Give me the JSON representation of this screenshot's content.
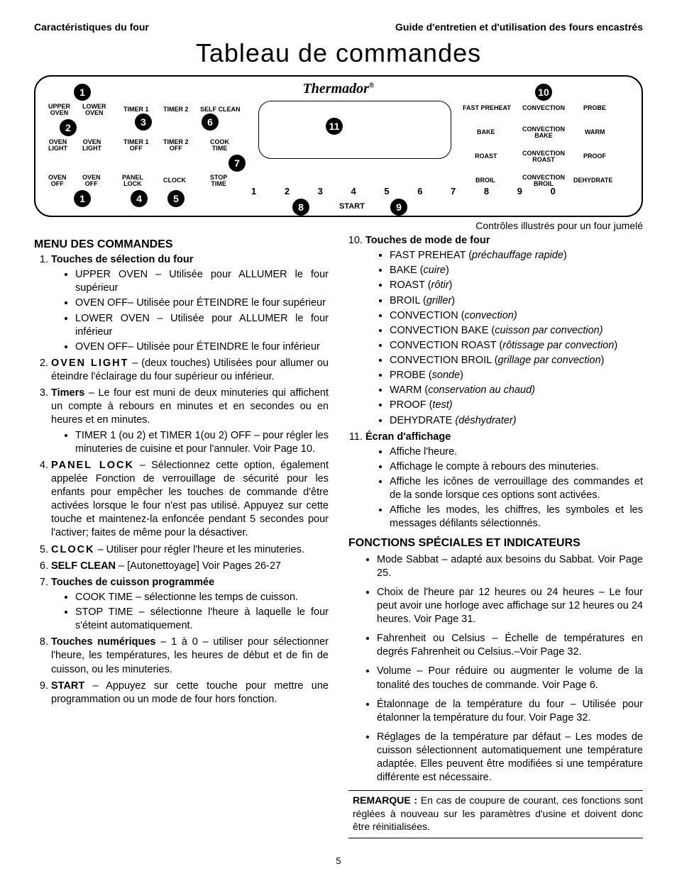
{
  "header": {
    "left": "Caractéristiques du four",
    "right": "Guide d'entretien et d'utilisation des fours encastrés"
  },
  "main_title": "Tableau de commandes",
  "brand": "Thermador",
  "panel": {
    "labels": {
      "upper_oven": "UPPER\nOVEN",
      "lower_oven": "LOWER\nOVEN",
      "timer1": "TIMER 1",
      "timer2": "TIMER 2",
      "self_clean": "SELF CLEAN",
      "oven_light_l": "OVEN\nLIGHT",
      "oven_light_r": "OVEN\nLIGHT",
      "timer1_off": "TIMER 1\nOFF",
      "timer2_off": "TIMER 2\nOFF",
      "cook_time": "COOK\nTIME",
      "oven_off_l": "OVEN\nOFF",
      "oven_off_r": "OVEN\nOFF",
      "panel_lock": "PANEL\nLOCK",
      "clock": "CLOCK",
      "stop_time": "STOP\nTIME",
      "fast_preheat": "FAST PREHEAT",
      "convection": "CONVECTION",
      "probe": "PROBE",
      "bake": "BAKE",
      "conv_bake": "CONVECTION\nBAKE",
      "warm": "WARM",
      "roast": "ROAST",
      "conv_roast": "CONVECTION\nROAST",
      "proof": "PROOF",
      "broil": "BROIL",
      "conv_broil": "CONVECTION\nBROIL",
      "dehydrate": "DEHYDRATE"
    },
    "keypad": "1  2  3  4  5  6  7  8  9  0",
    "start": "START",
    "callouts": {
      "c1a": "1",
      "c1b": "1",
      "c2": "2",
      "c3": "3",
      "c4": "4",
      "c5": "5",
      "c6": "6",
      "c7": "7",
      "c8": "8",
      "c9": "9",
      "c10": "10",
      "c11": "11"
    }
  },
  "caption": "Contrôles illustrés pour un four jumelé",
  "left_col": {
    "title": "MENU DES COMMANDES",
    "item1": {
      "head": "Touches de sélection du four",
      "subs": [
        "UPPER OVEN – Utilisée pour ALLUMER le four supérieur",
        "OVEN OFF– Utilisée pour ÉTEINDRE le four supérieur",
        "LOWER OVEN – Utilisée pour ALLUMER le four inférieur",
        "OVEN OFF– Utilisée pour ÉTEINDRE le four inférieur"
      ]
    },
    "item2": {
      "head": "OVEN LIGHT",
      "body": " – (deux touches) Utilisées pour allumer ou éteindre l'éclairage du four supérieur ou inférieur."
    },
    "item3": {
      "head": "Timers",
      "body": " – Le four est muni de deux minuteries qui affichent un compte à rebours en minutes et en secondes ou en heures et en minutes.",
      "subs": [
        "TIMER 1 (ou 2) et TIMER 1(ou 2) OFF – pour régler les minuteries de cuisine et pour l'annuler. Voir Page 10."
      ]
    },
    "item4": {
      "head": "PANEL LOCK",
      "body": " – Sélectionnez cette option, également appelée Fonction de verrouillage de sécurité pour les enfants pour empêcher les touches de commande d'être activées lorsque le four n'est pas utilisé. Appuyez sur cette touche et maintenez-la enfoncée pendant 5 secondes pour l'activer; faites de même pour la désactiver."
    },
    "item5": {
      "head": "CLOCK",
      "body": " – Utiliser pour régler l'heure et les minuteries."
    },
    "item6": {
      "head": "SELF CLEAN",
      "body": " – [Autonettoyage] Voir Pages 26-27"
    },
    "item7": {
      "head": "Touches de cuisson programmée",
      "subs": [
        "COOK TIME – sélectionne les temps de cuisson.",
        "STOP TIME – sélectionne l'heure à laquelle le four s'éteint automatiquement."
      ]
    },
    "item8": {
      "head": "Touches numériques",
      "body": " – 1 à 0 – utiliser pour sélectionner l'heure, les températures, les heures de début et de fin de cuisson, ou les minuteries."
    },
    "item9": {
      "head": "START",
      "body": " – Appuyez sur cette touche pour mettre une programmation ou un mode de four hors fonction."
    }
  },
  "right_col": {
    "item10": {
      "head": "Touches de mode de four",
      "modes": [
        {
          "t": "FAST PREHEAT (",
          "i": "préchauffage rapide",
          "e": ")"
        },
        {
          "t": "BAKE (",
          "i": "cuire",
          "e": ")"
        },
        {
          "t": "ROAST (",
          "i": "rôtir",
          "e": ")"
        },
        {
          "t": "BROIL (",
          "i": "griller",
          "e": ")"
        },
        {
          "t": "CONVECTION (",
          "i": "convection)",
          "e": ""
        },
        {
          "t": "CONVECTION BAKE (",
          "i": "cuisson par convection)",
          "e": ""
        },
        {
          "t": "CONVECTION ROAST (",
          "i": "rôtissage par convection",
          "e": ")"
        },
        {
          "t": "CONVECTION BROIL (",
          "i": "grillage par convection",
          "e": ")"
        },
        {
          "t": "PROBE  (",
          "i": "sonde",
          "e": ")"
        },
        {
          "t": "WARM (",
          "i": "conservation au chaud)",
          "e": ""
        },
        {
          "t": "PROOF (",
          "i": "test)",
          "e": ""
        },
        {
          "t": "DEHYDRATE  ",
          "i": "(déshydrater)",
          "e": ""
        }
      ]
    },
    "item11": {
      "head": "Écran d'affichage",
      "subs": [
        "Affiche l'heure.",
        "Affichage le compte à rebours des minuteries.",
        "Affiche les icônes de verrouillage des commandes et de la sonde lorsque ces options sont activées.",
        "Affiche les modes, les chiffres, les symboles et les messages défilants sélectionnés."
      ]
    },
    "special_title": "FONCTIONS SPÉCIALES ET INDICATEURS",
    "special": [
      "Mode Sabbat – adapté aux besoins du Sabbat. Voir Page 25.",
      "Choix de l'heure par 12 heures ou 24 heures – Le four peut avoir une horloge avec affichage sur 12 heures ou 24 heures. Voir Page 31.",
      "Fahrenheit ou Celsius – Échelle de températures en degrés Fahrenheit ou Celsius.–Voir Page 32.",
      "Volume – Pour réduire ou augmenter le volume de la tonalité des touches de commande. Voir Page 6.",
      "Étalonnage de la température du four – Utilisée pour étalonner la température du four. Voir Page 32.",
      "Réglages de la température par défaut – Les modes de cuisson sélectionnent automatiquement une température adaptée. Elles peuvent être modifiées si une température différente est nécessaire."
    ],
    "remark_head": "REMARQUE :",
    "remark_body": " En cas de coupure de courant, ces fonctions sont réglées à nouveau sur les paramètres d'usine et doivent donc être réinitialisées."
  },
  "page_number": "5"
}
